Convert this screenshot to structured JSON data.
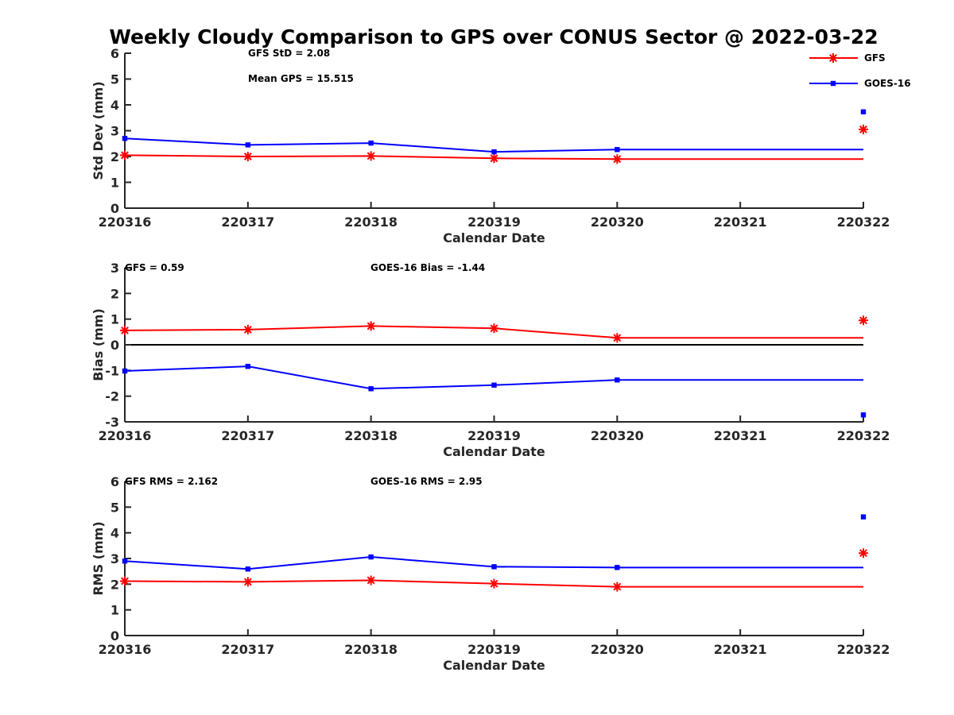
{
  "title": "Weekly Cloudy Comparison to GPS over CONUS Sector @ 2022-03-22",
  "colors": {
    "GFS": "#ff0000",
    "GOES-16": "#0000ff",
    "axis": "#262626",
    "zero_line": "#000000"
  },
  "legend": {
    "placement": "top-right",
    "entries": [
      {
        "name": "GFS",
        "marker": "asterisk"
      },
      {
        "name": "GOES-16",
        "marker": "square"
      }
    ]
  },
  "chart_data": [
    {
      "type": "line",
      "ylabel": "Std Dev (mm)",
      "xlabel": "Calendar Date",
      "x_tick_labels": [
        "220316",
        "220317",
        "220318",
        "220319",
        "220320",
        "220321",
        "220322"
      ],
      "ylim": [
        0,
        6
      ],
      "yticks": [
        0,
        1,
        2,
        3,
        4,
        5,
        6
      ],
      "annotations": [
        "GFS StD = 2.08",
        "Mean GPS = 15.515"
      ],
      "series": [
        {
          "name": "GFS",
          "x": [
            "220316",
            "220317",
            "220318",
            "220319",
            "220320",
            "220322"
          ],
          "values": [
            2.05,
            2.0,
            2.02,
            1.93,
            1.9,
            1.9
          ],
          "extra_point": {
            "x": "220322",
            "value": 3.05
          }
        },
        {
          "name": "GOES-16",
          "x": [
            "220316",
            "220317",
            "220318",
            "220319",
            "220320",
            "220322"
          ],
          "values": [
            2.7,
            2.45,
            2.52,
            2.18,
            2.27,
            2.27
          ],
          "extra_point": {
            "x": "220322",
            "value": 3.73
          }
        }
      ]
    },
    {
      "type": "line",
      "ylabel": "Bias (mm)",
      "xlabel": "Calendar Date",
      "x_tick_labels": [
        "220316",
        "220317",
        "220318",
        "220319",
        "220320",
        "220321",
        "220322"
      ],
      "ylim": [
        -3,
        3
      ],
      "yticks": [
        -3,
        -2,
        -1,
        0,
        1,
        2,
        3
      ],
      "zero_line": true,
      "annotations": [
        "GFS = 0.59",
        "GOES-16 Bias  = -1.44"
      ],
      "series": [
        {
          "name": "GFS",
          "x": [
            "220316",
            "220317",
            "220318",
            "220319",
            "220320",
            "220322"
          ],
          "values": [
            0.56,
            0.59,
            0.73,
            0.64,
            0.27,
            0.27
          ],
          "extra_point": {
            "x": "220322",
            "value": 0.95
          }
        },
        {
          "name": "GOES-16",
          "x": [
            "220316",
            "220317",
            "220318",
            "220319",
            "220320",
            "220322"
          ],
          "values": [
            -1.02,
            -0.84,
            -1.71,
            -1.57,
            -1.37,
            -1.37
          ],
          "extra_point": {
            "x": "220322",
            "value": -2.73
          }
        }
      ]
    },
    {
      "type": "line",
      "ylabel": "RMS (mm)",
      "xlabel": "Calendar Date",
      "x_tick_labels": [
        "220316",
        "220317",
        "220318",
        "220319",
        "220320",
        "220321",
        "220322"
      ],
      "ylim": [
        0,
        6
      ],
      "yticks": [
        0,
        1,
        2,
        3,
        4,
        5,
        6
      ],
      "annotations": [
        "GFS RMS = 2.162",
        "GOES-16 RMS = 2.95"
      ],
      "series": [
        {
          "name": "GFS",
          "x": [
            "220316",
            "220317",
            "220318",
            "220319",
            "220320",
            "220322"
          ],
          "values": [
            2.12,
            2.09,
            2.15,
            2.02,
            1.9,
            1.9
          ],
          "extra_point": {
            "x": "220322",
            "value": 3.21
          }
        },
        {
          "name": "GOES-16",
          "x": [
            "220316",
            "220317",
            "220318",
            "220319",
            "220320",
            "220322"
          ],
          "values": [
            2.9,
            2.59,
            3.06,
            2.68,
            2.65,
            2.65
          ],
          "extra_point": {
            "x": "220322",
            "value": 4.62
          }
        }
      ]
    }
  ]
}
